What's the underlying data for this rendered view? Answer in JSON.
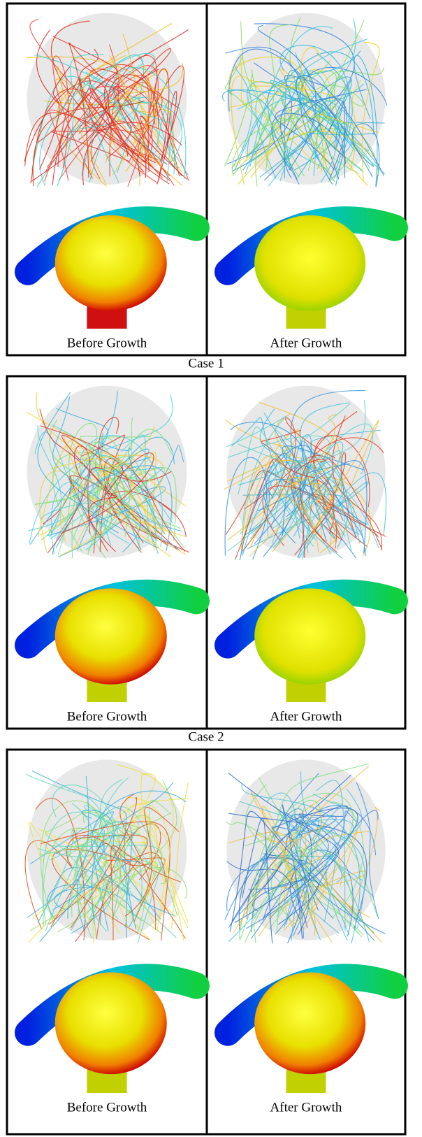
{
  "cases": [
    {
      "label": "Case 1",
      "panels": [
        {
          "caption": "Before Growth"
        },
        {
          "caption": "After Growth"
        }
      ]
    },
    {
      "label": "Case 2",
      "panels": [
        {
          "caption": "Before Growth"
        },
        {
          "caption": "After Growth"
        }
      ]
    },
    {
      "panels": [
        {
          "caption": "Before Growth"
        },
        {
          "caption": "After Growth"
        }
      ]
    }
  ]
}
